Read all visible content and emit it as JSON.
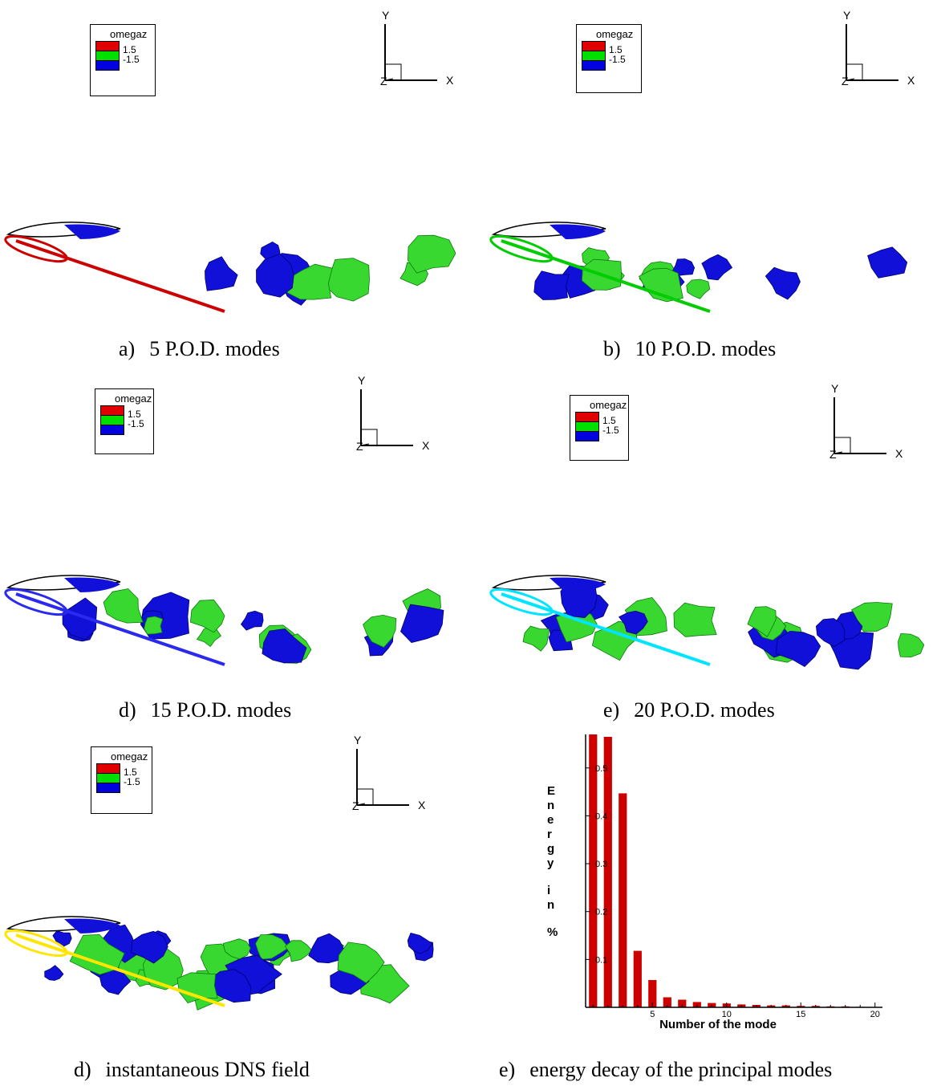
{
  "legend": {
    "title": "omegaz",
    "levels": [
      "1.5",
      "-1.5"
    ],
    "colors": [
      "#e00000",
      "#00e000",
      "#0000e0"
    ]
  },
  "axes_labels": {
    "y": "Y",
    "x": "X",
    "z": "Z"
  },
  "captions": [
    {
      "label": "a)",
      "text": "5 P.O.D. modes"
    },
    {
      "label": "b)",
      "text": "10 P.O.D. modes"
    },
    {
      "label": "d)",
      "text": "15 P.O.D. modes"
    },
    {
      "label": "e)",
      "text": "20 P.O.D. modes"
    },
    {
      "label": "d)",
      "text": "instantaneous DNS field"
    },
    {
      "label": "e)",
      "text": "energy decay of the principal modes"
    }
  ],
  "panels": [
    {
      "line_color": "#cc0000"
    },
    {
      "line_color": "#00cc00"
    },
    {
      "line_color": "#2a2aee"
    },
    {
      "line_color": "#00e5ff"
    },
    {
      "line_color": "#ffe600"
    }
  ],
  "chart_data": {
    "type": "bar",
    "ylabel": "Energy in %",
    "xlabel": "Number of the mode",
    "x_tick_labels": [
      "5",
      "10",
      "15",
      "20"
    ],
    "y_tick_labels": [
      "0.1",
      "0.2",
      "0.3",
      "0.4",
      "0.5"
    ],
    "xlim": [
      1,
      20
    ],
    "ylim": [
      0,
      0.57
    ],
    "bar_color": "#cc0000",
    "x": [
      1,
      2,
      3,
      4,
      5,
      6,
      7,
      8,
      9,
      10,
      11,
      12,
      13,
      14,
      15,
      16,
      17,
      18,
      19
    ],
    "values": [
      0.57,
      0.565,
      0.447,
      0.118,
      0.057,
      0.021,
      0.016,
      0.011,
      0.009,
      0.008,
      0.006,
      0.005,
      0.004,
      0.004,
      0.003,
      0.003,
      0.002,
      0.002,
      0.001
    ]
  }
}
